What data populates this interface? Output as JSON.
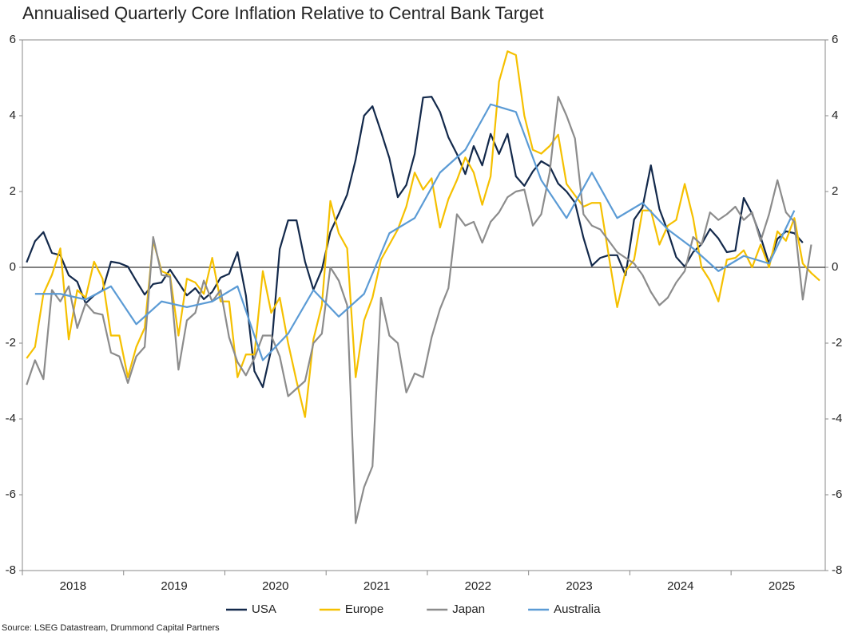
{
  "chart_data": {
    "type": "line",
    "title": "Annualised Quarterly Core Inflation Relative to Central Bank Target",
    "source": "Source: LSEG Datastream, Drummond Capital Partners",
    "x": [
      2018.042,
      2018.125,
      2018.208,
      2018.292,
      2018.375,
      2018.458,
      2018.542,
      2018.625,
      2018.708,
      2018.792,
      2018.875,
      2018.958,
      2019.042,
      2019.125,
      2019.208,
      2019.292,
      2019.375,
      2019.458,
      2019.542,
      2019.625,
      2019.708,
      2019.792,
      2019.875,
      2019.958,
      2020.042,
      2020.125,
      2020.208,
      2020.292,
      2020.375,
      2020.458,
      2020.542,
      2020.625,
      2020.708,
      2020.792,
      2020.875,
      2020.958,
      2021.042,
      2021.125,
      2021.208,
      2021.292,
      2021.375,
      2021.458,
      2021.542,
      2021.625,
      2021.708,
      2021.792,
      2021.875,
      2021.958,
      2022.042,
      2022.125,
      2022.208,
      2022.292,
      2022.375,
      2022.458,
      2022.542,
      2022.625,
      2022.708,
      2022.792,
      2022.875,
      2022.958,
      2023.042,
      2023.125,
      2023.208,
      2023.292,
      2023.375,
      2023.458,
      2023.542,
      2023.625,
      2023.708,
      2023.792,
      2023.875,
      2023.958,
      2024.042,
      2024.125,
      2024.208,
      2024.292,
      2024.375,
      2024.458,
      2024.542,
      2024.625,
      2024.708,
      2024.792,
      2024.875,
      2024.958,
      2025.042,
      2025.125,
      2025.208,
      2025.292,
      2025.375,
      2025.458,
      2025.542,
      2025.625,
      2025.708,
      2025.792,
      2025.875
    ],
    "series": [
      {
        "name": "USA",
        "color": "#13294b",
        "values": [
          0.13,
          0.69,
          0.93,
          0.38,
          0.32,
          -0.21,
          -0.38,
          -0.95,
          -0.74,
          -0.61,
          0.15,
          0.11,
          0.02,
          -0.36,
          -0.72,
          -0.44,
          -0.4,
          -0.06,
          -0.4,
          -0.74,
          -0.55,
          -0.84,
          -0.65,
          -0.27,
          -0.17,
          0.4,
          -0.74,
          -2.74,
          -3.16,
          -2.17,
          0.48,
          1.24,
          1.24,
          0.15,
          -0.59,
          -0.06,
          0.93,
          1.41,
          1.92,
          2.84,
          4.0,
          4.25,
          3.58,
          2.88,
          1.85,
          2.17,
          2.99,
          4.48,
          4.5,
          4.1,
          3.43,
          2.99,
          2.46,
          3.2,
          2.69,
          3.52,
          2.99,
          3.52,
          2.4,
          2.15,
          2.53,
          2.8,
          2.67,
          2.21,
          2.0,
          1.71,
          0.78,
          0.04,
          0.25,
          0.32,
          0.32,
          -0.21,
          1.26,
          1.58,
          2.69,
          1.54,
          0.95,
          0.27,
          0.02,
          0.4,
          0.61,
          1.01,
          0.76,
          0.4,
          0.44,
          1.83,
          1.41,
          0.8,
          0.1,
          0.75,
          0.95,
          0.9,
          0.65,
          null,
          null
        ]
      },
      {
        "name": "Europe",
        "color": "#f5c000",
        "values": [
          -2.4,
          -2.1,
          -0.7,
          -0.2,
          0.5,
          -1.9,
          -0.6,
          -0.8,
          0.15,
          -0.3,
          -1.8,
          -1.8,
          -2.9,
          -2.1,
          -1.6,
          0.7,
          -0.1,
          -0.2,
          -1.8,
          -0.3,
          -0.4,
          -0.7,
          0.25,
          -0.9,
          -0.9,
          -2.9,
          -2.3,
          -2.3,
          -0.1,
          -1.2,
          -0.8,
          -2.0,
          -3.0,
          -3.95,
          -1.9,
          -1.0,
          1.75,
          0.9,
          0.5,
          -2.9,
          -1.4,
          -0.8,
          0.2,
          0.6,
          1.0,
          1.6,
          2.5,
          2.05,
          2.35,
          1.05,
          1.8,
          2.3,
          2.9,
          2.5,
          1.65,
          2.4,
          4.9,
          5.7,
          5.6,
          4.0,
          3.1,
          3.0,
          3.2,
          3.5,
          2.2,
          1.9,
          1.6,
          1.7,
          1.7,
          0.3,
          -1.05,
          -0.1,
          0.2,
          1.5,
          1.5,
          0.6,
          1.1,
          1.25,
          2.2,
          1.3,
          0.0,
          -0.35,
          -0.9,
          0.2,
          0.25,
          0.45,
          0.0,
          0.6,
          0.0,
          0.95,
          0.7,
          1.3,
          0.1,
          -0.15,
          -0.35
        ]
      },
      {
        "name": "Japan",
        "color": "#8c8c8c",
        "values": [
          -3.1,
          -2.45,
          -2.95,
          -0.6,
          -0.9,
          -0.5,
          -1.6,
          -0.95,
          -1.2,
          -1.25,
          -2.25,
          -2.35,
          -3.05,
          -2.35,
          -2.1,
          0.8,
          -0.2,
          -0.25,
          -2.7,
          -1.4,
          -1.2,
          -0.35,
          -0.9,
          -0.6,
          -1.85,
          -2.5,
          -2.85,
          -2.4,
          -1.8,
          -1.8,
          -2.35,
          -3.4,
          -3.2,
          -3.0,
          -2.0,
          -1.75,
          0,
          -0.35,
          -1.0,
          -6.75,
          -5.8,
          -5.25,
          -0.8,
          -1.8,
          -2.0,
          -3.3,
          -2.8,
          -2.9,
          -1.85,
          -1.1,
          -0.55,
          1.4,
          1.1,
          1.2,
          0.65,
          1.2,
          1.45,
          1.85,
          2.0,
          2.05,
          1.1,
          1.4,
          2.5,
          4.5,
          4.0,
          3.4,
          1.4,
          1.1,
          1.0,
          0.7,
          0.4,
          0.25,
          0.1,
          -0.2,
          -0.65,
          -1.0,
          -0.8,
          -0.4,
          -0.1,
          0.8,
          0.6,
          1.45,
          1.25,
          1.4,
          1.6,
          1.25,
          1.45,
          0.7,
          1.4,
          2.3,
          1.45,
          1.2,
          -0.85,
          0.6,
          null
        ]
      },
      {
        "name": "Australia",
        "color": "#5b9bd5",
        "x": [
          2018.125,
          2018.375,
          2018.625,
          2018.875,
          2019.125,
          2019.375,
          2019.625,
          2019.875,
          2020.125,
          2020.375,
          2020.625,
          2020.875,
          2021.125,
          2021.375,
          2021.625,
          2021.875,
          2022.125,
          2022.375,
          2022.625,
          2022.875,
          2023.125,
          2023.375,
          2023.625,
          2023.875,
          2024.125,
          2024.375,
          2024.625,
          2024.875,
          2025.125,
          2025.375,
          2025.625
        ],
        "values": [
          -0.7,
          -0.7,
          -0.85,
          -0.5,
          -1.5,
          -0.9,
          -1.05,
          -0.9,
          -0.5,
          -2.45,
          -1.75,
          -0.6,
          -1.3,
          -0.7,
          0.9,
          1.3,
          2.5,
          3.1,
          4.3,
          4.1,
          2.3,
          1.3,
          2.5,
          1.3,
          1.7,
          1.0,
          0.5,
          -0.1,
          0.3,
          0.1,
          1.5
        ]
      }
    ],
    "xlim": [
      2018,
      2025.93
    ],
    "xticks": [
      2018,
      2019,
      2020,
      2021,
      2022,
      2023,
      2024,
      2025
    ],
    "ylim": [
      -8,
      6
    ],
    "yticks": [
      -8,
      -6,
      -4,
      -2,
      0,
      2,
      4,
      6
    ],
    "legend": "bottom"
  }
}
